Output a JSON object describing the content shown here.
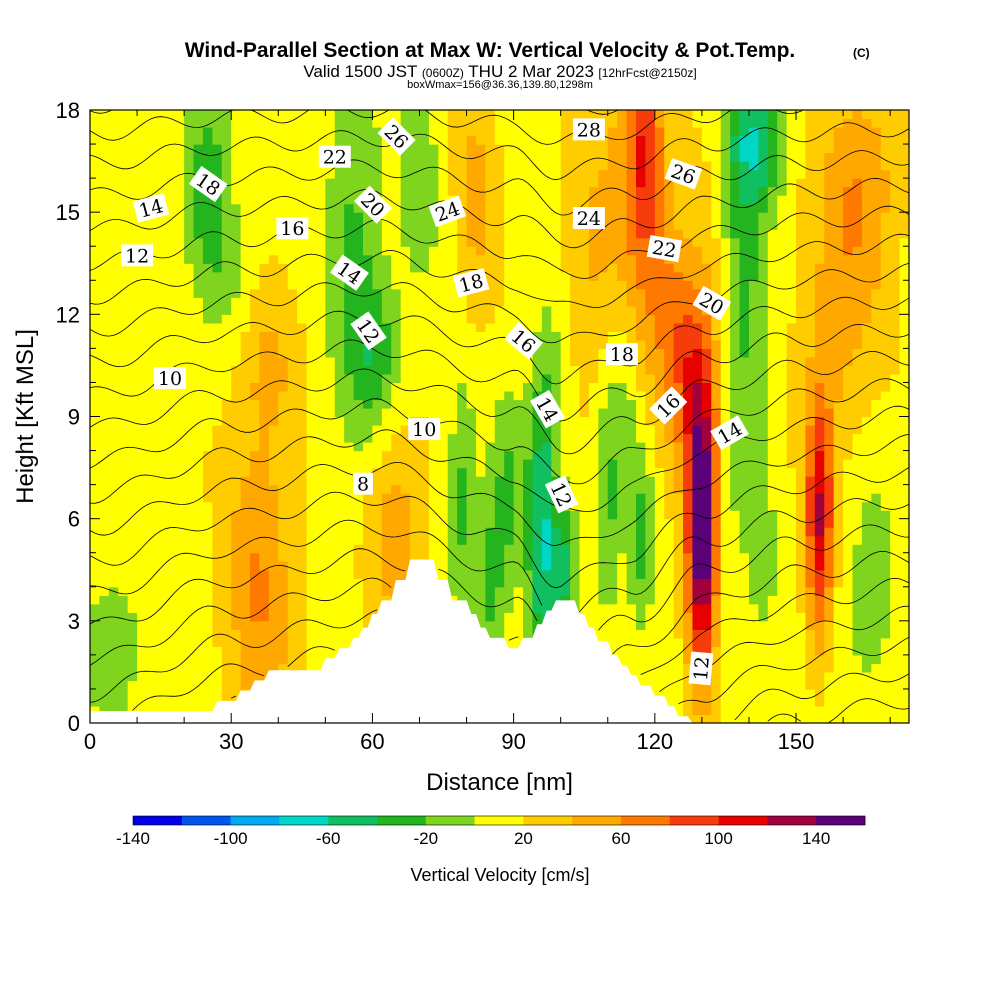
{
  "chart_data": {
    "type": "contour",
    "title": "Wind-Parallel Section at Max W: Vertical Velocity & Pot.Temp.",
    "title_mark": "(C)",
    "subtitle_parts": [
      "Valid 1500 JST",
      "(0600Z)",
      "THU 2 Mar 2023",
      "[12hrFcst@2150z]"
    ],
    "subtitle2": "boxWmax=156@36.36,139.80,1298m",
    "xlabel": "Distance [nm]",
    "ylabel": "Height [Kft MSL]",
    "xlim": [
      0,
      174
    ],
    "ylim": [
      0,
      18
    ],
    "x_ticks": [
      0,
      30,
      60,
      90,
      120,
      150
    ],
    "y_ticks": [
      0,
      3,
      6,
      9,
      12,
      15,
      18
    ],
    "grid": false,
    "colorbar": {
      "label": "Vertical Velocity [cm/s]",
      "placement": "bottom",
      "min": -140,
      "max": 160,
      "step": 20,
      "tick_labels": [
        -140,
        -100,
        -60,
        -20,
        20,
        60,
        100,
        140
      ],
      "colors": [
        "#0000e6",
        "#0055ee",
        "#00aaf0",
        "#00d6c6",
        "#10c060",
        "#24b41e",
        "#7fd41e",
        "#ffff00",
        "#ffcc00",
        "#ffa800",
        "#ff7800",
        "#f53c0a",
        "#e60000",
        "#a0003c",
        "#5a0078"
      ]
    },
    "terrain": [
      [
        0,
        0.35
      ],
      [
        26,
        0.35
      ],
      [
        27,
        0.65
      ],
      [
        31,
        0.65
      ],
      [
        32,
        0.95
      ],
      [
        34,
        0.95
      ],
      [
        35,
        1.25
      ],
      [
        37,
        1.25
      ],
      [
        38,
        1.55
      ],
      [
        49,
        1.55
      ],
      [
        50,
        1.9
      ],
      [
        52,
        1.9
      ],
      [
        53,
        2.2
      ],
      [
        55,
        2.2
      ],
      [
        56,
        2.5
      ],
      [
        57,
        2.5
      ],
      [
        58,
        2.8
      ],
      [
        59,
        2.8
      ],
      [
        60,
        3.2
      ],
      [
        61,
        3.2
      ],
      [
        62,
        3.6
      ],
      [
        64,
        3.6
      ],
      [
        65,
        4.2
      ],
      [
        67,
        4.2
      ],
      [
        68,
        4.8
      ],
      [
        73,
        4.8
      ],
      [
        74,
        4.2
      ],
      [
        76,
        4.2
      ],
      [
        77,
        3.6
      ],
      [
        80,
        3.6
      ],
      [
        81,
        3.2
      ],
      [
        82,
        3.2
      ],
      [
        83,
        2.8
      ],
      [
        84,
        2.8
      ],
      [
        85,
        2.5
      ],
      [
        88,
        2.5
      ],
      [
        89,
        2.2
      ],
      [
        91,
        2.2
      ],
      [
        92,
        2.5
      ],
      [
        94,
        2.5
      ],
      [
        95,
        2.9
      ],
      [
        96,
        2.9
      ],
      [
        97,
        3.3
      ],
      [
        98,
        3.3
      ],
      [
        99,
        3.6
      ],
      [
        103,
        3.6
      ],
      [
        104,
        3.2
      ],
      [
        105,
        3.2
      ],
      [
        106,
        2.8
      ],
      [
        107,
        2.8
      ],
      [
        108,
        2.4
      ],
      [
        110,
        2.4
      ],
      [
        111,
        2.0
      ],
      [
        112,
        2.0
      ],
      [
        113,
        1.7
      ],
      [
        114,
        1.7
      ],
      [
        115,
        1.4
      ],
      [
        116,
        1.4
      ],
      [
        117,
        1.1
      ],
      [
        119,
        1.1
      ],
      [
        120,
        0.8
      ],
      [
        122,
        0.8
      ],
      [
        123,
        0.5
      ],
      [
        124,
        0.5
      ],
      [
        125,
        0.2
      ],
      [
        127,
        0.2
      ],
      [
        128,
        0
      ],
      [
        174,
        0
      ]
    ],
    "w_features": [
      {
        "x": 2,
        "y": 2,
        "sx": 4,
        "sy": 1.5,
        "w": -20
      },
      {
        "x": 7,
        "y": 2.5,
        "sx": 3,
        "sy": 1.5,
        "w": -20
      },
      {
        "x": 25,
        "y": 16.2,
        "sx": 3.5,
        "sy": 2.2,
        "w": -45
      },
      {
        "x": 29,
        "y": 13.5,
        "sx": 4,
        "sy": 1.5,
        "w": -20
      },
      {
        "x": 36,
        "y": 4,
        "sx": 5,
        "sy": 3.5,
        "w": 45
      },
      {
        "x": 38,
        "y": 10.5,
        "sx": 4,
        "sy": 1.5,
        "w": 25
      },
      {
        "x": 56,
        "y": 14,
        "sx": 4,
        "sy": 4,
        "w": -40
      },
      {
        "x": 61,
        "y": 11,
        "sx": 3.5,
        "sy": 1.5,
        "w": -40
      },
      {
        "x": 70,
        "y": 16,
        "sx": 3.5,
        "sy": 2.5,
        "w": -25
      },
      {
        "x": 65,
        "y": 5.5,
        "sx": 4,
        "sy": 2,
        "w": 40
      },
      {
        "x": 79,
        "y": 6.5,
        "sx": 2,
        "sy": 2.5,
        "w": -40
      },
      {
        "x": 82,
        "y": 15.5,
        "sx": 3,
        "sy": 2.5,
        "w": 30
      },
      {
        "x": 85,
        "y": 4,
        "sx": 2.5,
        "sy": 2,
        "w": -40
      },
      {
        "x": 89,
        "y": 7,
        "sx": 2.5,
        "sy": 2,
        "w": -35
      },
      {
        "x": 96,
        "y": 5.5,
        "sx": 2.2,
        "sy": 3,
        "w": -75
      },
      {
        "x": 101,
        "y": 4.5,
        "sx": 2,
        "sy": 1.5,
        "w": -55
      },
      {
        "x": 98,
        "y": 10,
        "sx": 3,
        "sy": 2,
        "w": -20
      },
      {
        "x": 106,
        "y": 13.5,
        "sx": 4,
        "sy": 3,
        "w": 25
      },
      {
        "x": 110,
        "y": 6.5,
        "sx": 2,
        "sy": 2.5,
        "w": -40
      },
      {
        "x": 117,
        "y": 5.5,
        "sx": 2,
        "sy": 2,
        "w": -40
      },
      {
        "x": 114,
        "y": 9.5,
        "sx": 2,
        "sy": 1.5,
        "w": -20
      },
      {
        "x": 113,
        "y": 16.5,
        "sx": 3,
        "sy": 2.5,
        "w": 25
      },
      {
        "x": 118,
        "y": 14.5,
        "sx": 3,
        "sy": 3,
        "w": 35
      },
      {
        "x": 118,
        "y": 17,
        "sx": 2.5,
        "sy": 2,
        "w": 60
      },
      {
        "x": 123,
        "y": 12,
        "sx": 3,
        "sy": 2.5,
        "w": 40
      },
      {
        "x": 130,
        "y": 5.5,
        "sx": 2.2,
        "sy": 3,
        "w": 120
      },
      {
        "x": 131,
        "y": 8,
        "sx": 3,
        "sy": 4,
        "w": 50
      },
      {
        "x": 127,
        "y": 10.5,
        "sx": 2.5,
        "sy": 2,
        "w": 45
      },
      {
        "x": 139,
        "y": 14,
        "sx": 3.5,
        "sy": 5,
        "w": -45
      },
      {
        "x": 142,
        "y": 17,
        "sx": 4,
        "sy": 1.2,
        "w": -50
      },
      {
        "x": 134,
        "y": 5,
        "sx": 2,
        "sy": 3,
        "w": -25
      },
      {
        "x": 143,
        "y": 4.5,
        "sx": 3,
        "sy": 3,
        "w": -15
      },
      {
        "x": 155,
        "y": 6,
        "sx": 2,
        "sy": 2.5,
        "w": 100
      },
      {
        "x": 160,
        "y": 12,
        "sx": 6,
        "sy": 4,
        "w": 35
      },
      {
        "x": 165,
        "y": 4.5,
        "sx": 5,
        "sy": 4,
        "w": -25
      },
      {
        "x": 165,
        "y": 16,
        "sx": 5,
        "sy": 2,
        "w": 30
      }
    ],
    "theta_contours": {
      "min": 6,
      "max": 29,
      "step": 1,
      "labels": [
        {
          "x": 13,
          "y": 15.1,
          "text": "14",
          "angle": -15
        },
        {
          "x": 10,
          "y": 13.7,
          "text": "12",
          "angle": 0
        },
        {
          "x": 25,
          "y": 15.8,
          "text": "18",
          "angle": 35
        },
        {
          "x": 43,
          "y": 14.5,
          "text": "16",
          "angle": 0
        },
        {
          "x": 52,
          "y": 16.6,
          "text": "22",
          "angle": 0
        },
        {
          "x": 65,
          "y": 17.2,
          "text": "26",
          "angle": 45
        },
        {
          "x": 60,
          "y": 15.2,
          "text": "20",
          "angle": 45
        },
        {
          "x": 55,
          "y": 13.2,
          "text": "14",
          "angle": 35
        },
        {
          "x": 59,
          "y": 11.5,
          "text": "12",
          "angle": 55
        },
        {
          "x": 76,
          "y": 15,
          "text": "24",
          "angle": -20
        },
        {
          "x": 81,
          "y": 12.9,
          "text": "18",
          "angle": -15
        },
        {
          "x": 92,
          "y": 11.2,
          "text": "16",
          "angle": 40
        },
        {
          "x": 17,
          "y": 10.1,
          "text": "10",
          "angle": 0
        },
        {
          "x": 71,
          "y": 8.6,
          "text": "10",
          "angle": 0
        },
        {
          "x": 58,
          "y": 7,
          "text": "8",
          "angle": 0
        },
        {
          "x": 97,
          "y": 9.2,
          "text": "14",
          "angle": 60
        },
        {
          "x": 100,
          "y": 6.7,
          "text": "12",
          "angle": 65
        },
        {
          "x": 106,
          "y": 17.4,
          "text": "28",
          "angle": 0
        },
        {
          "x": 106,
          "y": 14.8,
          "text": "24",
          "angle": 0
        },
        {
          "x": 113,
          "y": 10.8,
          "text": "18",
          "angle": 0
        },
        {
          "x": 122,
          "y": 13.9,
          "text": "22",
          "angle": 10
        },
        {
          "x": 126,
          "y": 16.1,
          "text": "26",
          "angle": 20
        },
        {
          "x": 132,
          "y": 12.3,
          "text": "20",
          "angle": 30
        },
        {
          "x": 123,
          "y": 9.3,
          "text": "16",
          "angle": -45
        },
        {
          "x": 136,
          "y": 8.5,
          "text": "14",
          "angle": -30
        },
        {
          "x": 130,
          "y": 1.6,
          "text": "12",
          "angle": -85
        }
      ]
    }
  }
}
